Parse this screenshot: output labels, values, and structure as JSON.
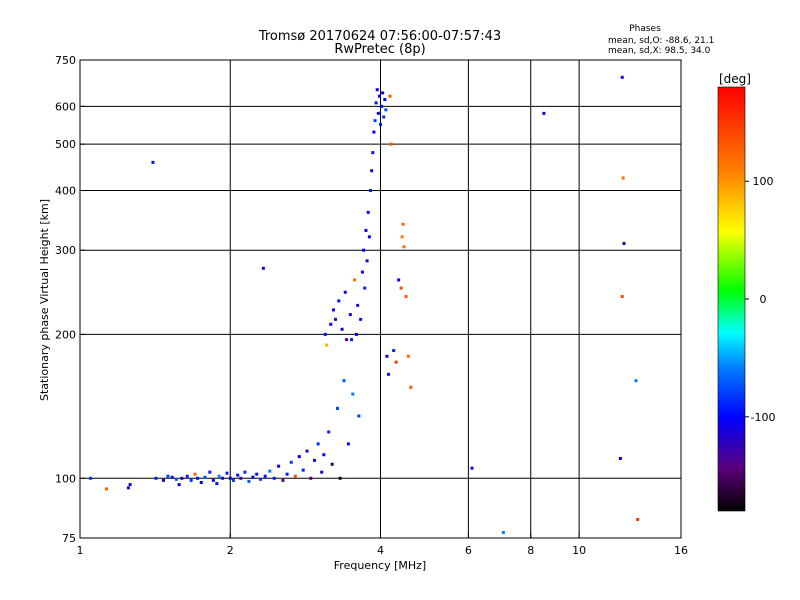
{
  "chart_data": {
    "type": "scatter",
    "title_line1": "Tromsø 20170624 07:56:00-07:57:43",
    "title_line2": "RwPretec (8p)",
    "xlabel": "Frequency [MHz]",
    "ylabel": "Stationary phase Virtual Height [km]",
    "x_scale": "log",
    "y_scale": "log",
    "xlim": [
      1,
      16
    ],
    "ylim": [
      75,
      750
    ],
    "grid": true,
    "x_ticks": [
      {
        "value": 1,
        "label": "1"
      },
      {
        "value": 2,
        "label": "2"
      },
      {
        "value": 4,
        "label": "4"
      },
      {
        "value": 6,
        "label": "6"
      },
      {
        "value": 8,
        "label": "8"
      },
      {
        "value": 10,
        "label": "10"
      },
      {
        "value": 16,
        "label": "16"
      }
    ],
    "x_grid": [
      2,
      4,
      6,
      8,
      10
    ],
    "y_ticks": [
      {
        "value": 75,
        "label": "75"
      },
      {
        "value": 100,
        "label": "100"
      },
      {
        "value": 200,
        "label": "200"
      },
      {
        "value": 300,
        "label": "300"
      },
      {
        "value": 400,
        "label": "400"
      },
      {
        "value": 500,
        "label": "500"
      },
      {
        "value": 600,
        "label": "600"
      },
      {
        "value": 750,
        "label": "750"
      }
    ],
    "y_grid": [
      100,
      200,
      300,
      400,
      500,
      600
    ],
    "phases": {
      "heading": "Phases",
      "line_o": "mean, sd,O:  -88.6, 21.1",
      "line_x": "mean, sd,X:  98.5, 34.0"
    },
    "colorbar": {
      "label": "[deg]",
      "range": [
        -180,
        180
      ],
      "ticks": [
        {
          "value": 100,
          "label": "100"
        },
        {
          "value": 0,
          "label": "0"
        },
        {
          "value": -100,
          "label": "-100"
        }
      ]
    },
    "series": [
      {
        "name": "phase_points",
        "points": [
          {
            "x": 1.05,
            "y": 100,
            "phase": -85
          },
          {
            "x": 1.13,
            "y": 95,
            "phase": 125
          },
          {
            "x": 1.26,
            "y": 97,
            "phase": -100
          },
          {
            "x": 1.25,
            "y": 95.5,
            "phase": -120
          },
          {
            "x": 1.4,
            "y": 458,
            "phase": -95
          },
          {
            "x": 1.42,
            "y": 100,
            "phase": -90
          },
          {
            "x": 1.47,
            "y": 99,
            "phase": -110
          },
          {
            "x": 1.5,
            "y": 101,
            "phase": -80
          },
          {
            "x": 1.53,
            "y": 100.5,
            "phase": -95
          },
          {
            "x": 1.56,
            "y": 99.5,
            "phase": -70
          },
          {
            "x": 1.58,
            "y": 97,
            "phase": -105
          },
          {
            "x": 1.6,
            "y": 100,
            "phase": -115
          },
          {
            "x": 1.64,
            "y": 101,
            "phase": -90
          },
          {
            "x": 1.67,
            "y": 99,
            "phase": -85
          },
          {
            "x": 1.7,
            "y": 102,
            "phase": 130
          },
          {
            "x": 1.72,
            "y": 100,
            "phase": -95
          },
          {
            "x": 1.75,
            "y": 98,
            "phase": -100
          },
          {
            "x": 1.78,
            "y": 100.5,
            "phase": -75
          },
          {
            "x": 1.82,
            "y": 103,
            "phase": -90
          },
          {
            "x": 1.85,
            "y": 99,
            "phase": -110
          },
          {
            "x": 1.88,
            "y": 97.5,
            "phase": -95
          },
          {
            "x": 1.9,
            "y": 101,
            "phase": -60
          },
          {
            "x": 1.93,
            "y": 100,
            "phase": -120
          },
          {
            "x": 1.97,
            "y": 102.5,
            "phase": -90
          },
          {
            "x": 2.0,
            "y": 100,
            "phase": -100
          },
          {
            "x": 2.03,
            "y": 99,
            "phase": -80
          },
          {
            "x": 2.07,
            "y": 101.5,
            "phase": -95
          },
          {
            "x": 2.1,
            "y": 100,
            "phase": -130
          },
          {
            "x": 2.14,
            "y": 103,
            "phase": -90
          },
          {
            "x": 2.18,
            "y": 98.5,
            "phase": -70
          },
          {
            "x": 2.22,
            "y": 100.5,
            "phase": -100
          },
          {
            "x": 2.26,
            "y": 102,
            "phase": -110
          },
          {
            "x": 2.3,
            "y": 99.5,
            "phase": -85
          },
          {
            "x": 2.33,
            "y": 275,
            "phase": -120
          },
          {
            "x": 2.35,
            "y": 101,
            "phase": -95
          },
          {
            "x": 2.4,
            "y": 103.5,
            "phase": -60
          },
          {
            "x": 2.45,
            "y": 100,
            "phase": -90
          },
          {
            "x": 2.5,
            "y": 106,
            "phase": -105
          },
          {
            "x": 2.55,
            "y": 99,
            "phase": -140
          },
          {
            "x": 2.6,
            "y": 102,
            "phase": -95
          },
          {
            "x": 2.65,
            "y": 108,
            "phase": -80
          },
          {
            "x": 2.7,
            "y": 101,
            "phase": 140
          },
          {
            "x": 2.75,
            "y": 111,
            "phase": -100
          },
          {
            "x": 2.8,
            "y": 104,
            "phase": -90
          },
          {
            "x": 2.85,
            "y": 114,
            "phase": -110
          },
          {
            "x": 2.9,
            "y": 100,
            "phase": -150
          },
          {
            "x": 2.95,
            "y": 109,
            "phase": -95
          },
          {
            "x": 3.0,
            "y": 118,
            "phase": -85
          },
          {
            "x": 3.05,
            "y": 103,
            "phase": -120
          },
          {
            "x": 3.08,
            "y": 112,
            "phase": -100
          },
          {
            "x": 3.1,
            "y": 200,
            "phase": -95
          },
          {
            "x": 3.12,
            "y": 190,
            "phase": 90
          },
          {
            "x": 3.15,
            "y": 125,
            "phase": -90
          },
          {
            "x": 3.18,
            "y": 210,
            "phase": -110
          },
          {
            "x": 3.2,
            "y": 107,
            "phase": -160
          },
          {
            "x": 3.22,
            "y": 225,
            "phase": -100
          },
          {
            "x": 3.25,
            "y": 215,
            "phase": -130
          },
          {
            "x": 3.28,
            "y": 140,
            "phase": -80
          },
          {
            "x": 3.3,
            "y": 235,
            "phase": -95
          },
          {
            "x": 3.32,
            "y": 100,
            "phase": -170
          },
          {
            "x": 3.35,
            "y": 205,
            "phase": -120
          },
          {
            "x": 3.38,
            "y": 160,
            "phase": -70
          },
          {
            "x": 3.4,
            "y": 245,
            "phase": -100
          },
          {
            "x": 3.42,
            "y": 195,
            "phase": -140
          },
          {
            "x": 3.45,
            "y": 118,
            "phase": -95
          },
          {
            "x": 3.48,
            "y": 220,
            "phase": -110
          },
          {
            "x": 3.5,
            "y": 195,
            "phase": -90
          },
          {
            "x": 3.52,
            "y": 150,
            "phase": -60
          },
          {
            "x": 3.55,
            "y": 260,
            "phase": 120
          },
          {
            "x": 3.58,
            "y": 200,
            "phase": -100
          },
          {
            "x": 3.6,
            "y": 230,
            "phase": -120
          },
          {
            "x": 3.62,
            "y": 135,
            "phase": -80
          },
          {
            "x": 3.65,
            "y": 215,
            "phase": -95
          },
          {
            "x": 3.68,
            "y": 270,
            "phase": -110
          },
          {
            "x": 3.7,
            "y": 300,
            "phase": -100
          },
          {
            "x": 3.72,
            "y": 250,
            "phase": -90
          },
          {
            "x": 3.74,
            "y": 330,
            "phase": -105
          },
          {
            "x": 3.76,
            "y": 285,
            "phase": -120
          },
          {
            "x": 3.78,
            "y": 360,
            "phase": -95
          },
          {
            "x": 3.8,
            "y": 320,
            "phase": -100
          },
          {
            "x": 3.82,
            "y": 400,
            "phase": -90
          },
          {
            "x": 3.84,
            "y": 440,
            "phase": -110
          },
          {
            "x": 3.86,
            "y": 480,
            "phase": -95
          },
          {
            "x": 3.88,
            "y": 530,
            "phase": -100
          },
          {
            "x": 3.9,
            "y": 560,
            "phase": -80
          },
          {
            "x": 3.92,
            "y": 610,
            "phase": -95
          },
          {
            "x": 3.94,
            "y": 650,
            "phase": -105
          },
          {
            "x": 3.96,
            "y": 580,
            "phase": -100
          },
          {
            "x": 3.98,
            "y": 630,
            "phase": -110
          },
          {
            "x": 4.0,
            "y": 550,
            "phase": -90
          },
          {
            "x": 4.02,
            "y": 600,
            "phase": -95
          },
          {
            "x": 4.04,
            "y": 640,
            "phase": -120
          },
          {
            "x": 4.06,
            "y": 570,
            "phase": -85
          },
          {
            "x": 4.08,
            "y": 620,
            "phase": -100
          },
          {
            "x": 4.1,
            "y": 590,
            "phase": -75
          },
          {
            "x": 4.12,
            "y": 180,
            "phase": -110
          },
          {
            "x": 4.15,
            "y": 165,
            "phase": -95
          },
          {
            "x": 4.18,
            "y": 630,
            "phase": 130
          },
          {
            "x": 4.2,
            "y": 500,
            "phase": 135
          },
          {
            "x": 4.25,
            "y": 185,
            "phase": -90
          },
          {
            "x": 4.3,
            "y": 175,
            "phase": 150
          },
          {
            "x": 4.35,
            "y": 260,
            "phase": -100
          },
          {
            "x": 4.4,
            "y": 250,
            "phase": 140
          },
          {
            "x": 4.42,
            "y": 320,
            "phase": 110
          },
          {
            "x": 4.44,
            "y": 340,
            "phase": 125
          },
          {
            "x": 4.46,
            "y": 305,
            "phase": 115
          },
          {
            "x": 4.5,
            "y": 240,
            "phase": 130
          },
          {
            "x": 4.55,
            "y": 180,
            "phase": 120
          },
          {
            "x": 4.6,
            "y": 155,
            "phase": 135
          },
          {
            "x": 6.1,
            "y": 105,
            "phase": -110
          },
          {
            "x": 7.05,
            "y": 77,
            "phase": -60
          },
          {
            "x": 8.5,
            "y": 580,
            "phase": -110
          },
          {
            "x": 12.2,
            "y": 690,
            "phase": -105
          },
          {
            "x": 12.25,
            "y": 425,
            "phase": 120
          },
          {
            "x": 12.3,
            "y": 310,
            "phase": -120
          },
          {
            "x": 12.2,
            "y": 240,
            "phase": 140
          },
          {
            "x": 12.1,
            "y": 110,
            "phase": -100
          },
          {
            "x": 13.0,
            "y": 160,
            "phase": -60
          },
          {
            "x": 13.1,
            "y": 82,
            "phase": 150
          }
        ]
      }
    ]
  }
}
